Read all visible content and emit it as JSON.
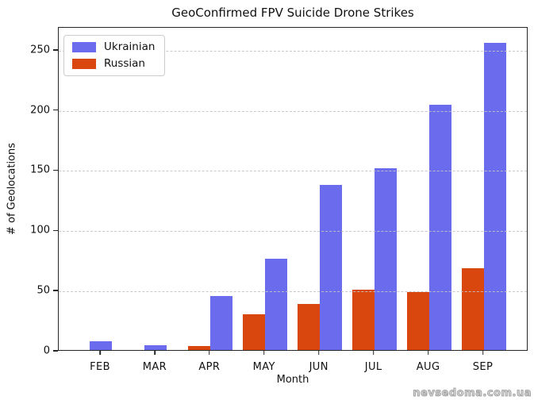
{
  "figure": {
    "watermark": "nevsedoma.com.ua"
  },
  "chart_data": {
    "type": "bar",
    "title": "GeoConfirmed FPV Suicide Drone Strikes",
    "xlabel": "Month",
    "ylabel": "# of Geolocations",
    "categories": [
      "FEB",
      "MAR",
      "APR",
      "MAY",
      "JUN",
      "JUL",
      "AUG",
      "SEP"
    ],
    "series": [
      {
        "name": "Ukrainian",
        "color": "#6b6bee",
        "values": [
          7,
          4,
          45,
          76,
          137,
          151,
          204,
          255
        ]
      },
      {
        "name": "Russian",
        "color": "#da470e",
        "values": [
          0,
          0,
          3,
          30,
          38,
          50,
          48,
          68
        ]
      }
    ],
    "yticks": [
      0,
      50,
      100,
      150,
      200,
      250
    ],
    "ylim": [
      0,
      269
    ],
    "grid": "horizontal-dashed",
    "grid_color": "#c3c3c3",
    "legend_position": "upper-left",
    "bar_layout": "grouped; Russian bar left of month tick, Ukrainian bar right; months with Russian=0 show a single centered Ukrainian bar"
  }
}
